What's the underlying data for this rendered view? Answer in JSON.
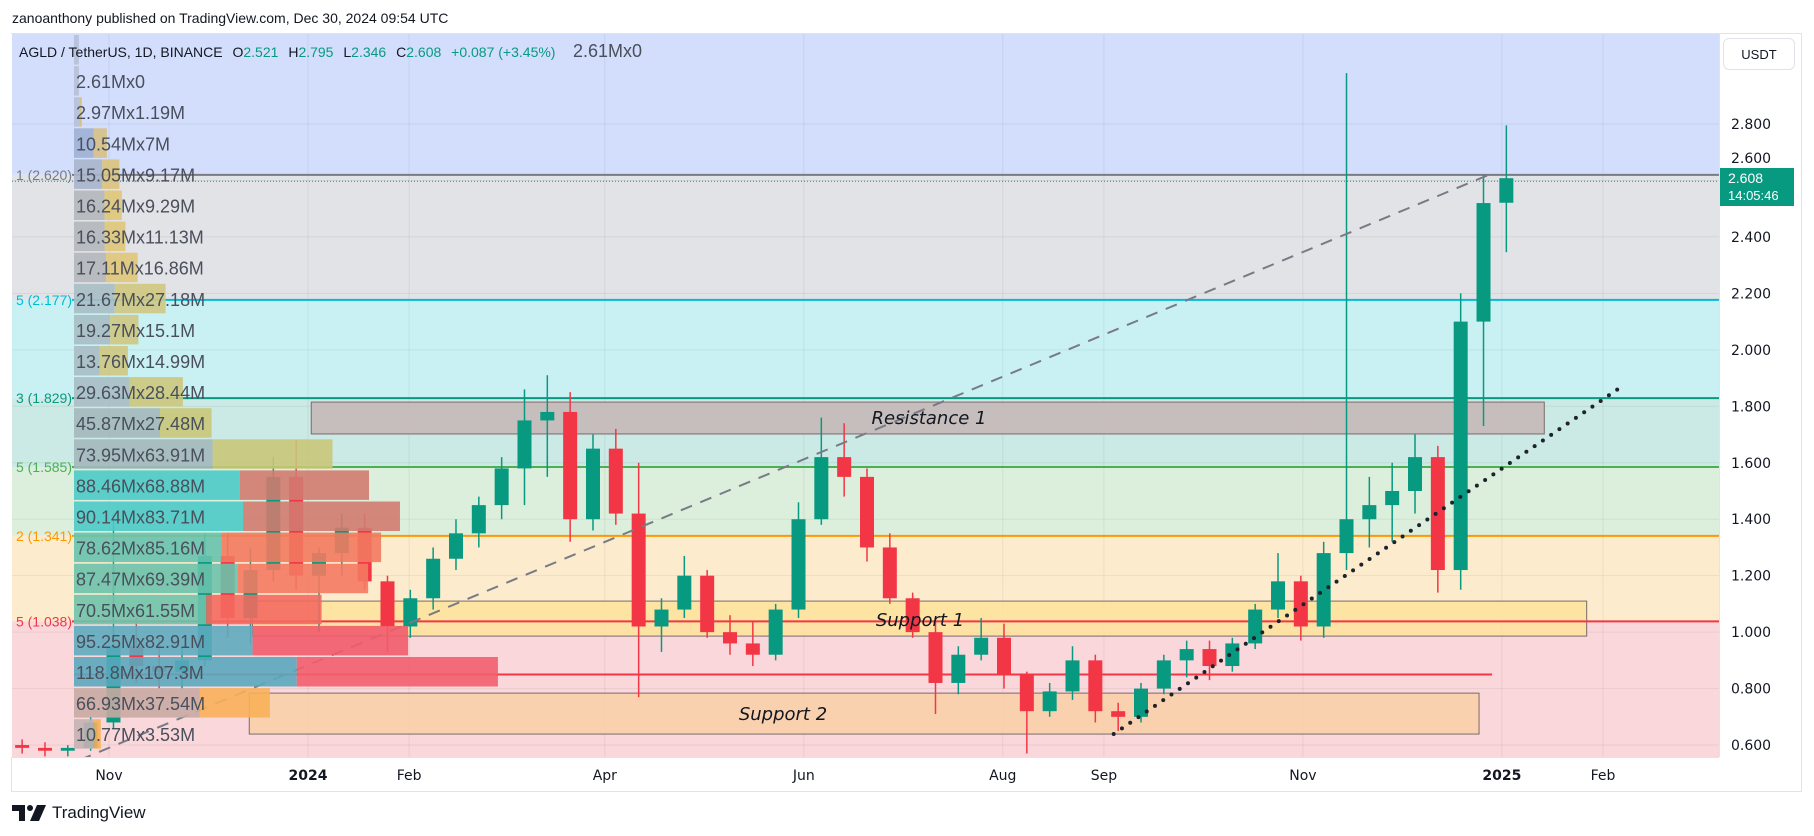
{
  "header": {
    "publisher_line": "zanoanthony published on TradingView.com, Dec 30, 2024 09:54 UTC"
  },
  "legend": {
    "symbol": "AGLD / TetherUS, 1D, BINANCE",
    "open_label": "O",
    "open": "2.521",
    "high_label": "H",
    "high": "2.795",
    "low_label": "L",
    "low": "2.346",
    "close_label": "C",
    "close": "2.608",
    "change": "+0.087 (+3.45%)"
  },
  "price_axis": {
    "currency_button": "USDT",
    "ticks": [
      "2.800",
      "2.600",
      "2.400",
      "2.200",
      "2.000",
      "1.800",
      "1.600",
      "1.400",
      "1.200",
      "1.000",
      "0.800",
      "0.600"
    ],
    "current_price": "2.608",
    "countdown": "14:05:46"
  },
  "time_axis": {
    "ticks": [
      {
        "label": "Nov",
        "date": "2023-11-01",
        "bold": false
      },
      {
        "label": "2024",
        "date": "2024-01-01",
        "bold": true
      },
      {
        "label": "Feb",
        "date": "2024-02-01",
        "bold": false
      },
      {
        "label": "Apr",
        "date": "2024-04-01",
        "bold": false
      },
      {
        "label": "Jun",
        "date": "2024-06-01",
        "bold": false
      },
      {
        "label": "Aug",
        "date": "2024-08-01",
        "bold": false
      },
      {
        "label": "Sep",
        "date": "2024-09-01",
        "bold": false
      },
      {
        "label": "Nov",
        "date": "2024-11-01",
        "bold": false
      },
      {
        "label": "2025",
        "date": "2025-01-01",
        "bold": true
      },
      {
        "label": "Feb",
        "date": "2025-02-01",
        "bold": false
      }
    ]
  },
  "colors": {
    "up": "#089981",
    "down": "#f23645",
    "accent": "#089981"
  },
  "chart_data": {
    "type": "candlestick",
    "title": "AGLD / TetherUS, 1D, BINANCE",
    "ylim": [
      0.58,
      2.98
    ],
    "grid": true,
    "candles_weekly_approx": [
      [
        "2023-10-02",
        0.6,
        0.62,
        0.57,
        0.59
      ],
      [
        "2023-10-09",
        0.59,
        0.61,
        0.56,
        0.58
      ],
      [
        "2023-10-16",
        0.58,
        0.6,
        0.56,
        0.59
      ],
      [
        "2023-10-23",
        0.59,
        0.7,
        0.58,
        0.68
      ],
      [
        "2023-10-30",
        0.68,
        1.42,
        0.66,
        0.95
      ],
      [
        "2023-11-06",
        0.95,
        1.05,
        0.82,
        0.88
      ],
      [
        "2023-11-13",
        0.88,
        0.98,
        0.8,
        0.86
      ],
      [
        "2023-11-20",
        0.86,
        0.95,
        0.8,
        0.9
      ],
      [
        "2023-11-27",
        0.9,
        1.35,
        0.88,
        1.27
      ],
      [
        "2023-12-04",
        1.27,
        1.35,
        0.98,
        1.05
      ],
      [
        "2023-12-11",
        1.05,
        1.3,
        0.96,
        1.22
      ],
      [
        "2023-12-18",
        1.22,
        1.62,
        1.18,
        1.55
      ],
      [
        "2023-12-25",
        1.55,
        1.68,
        1.15,
        1.2
      ],
      [
        "2024-01-01",
        1.2,
        1.3,
        1.0,
        1.28
      ],
      [
        "2024-01-08",
        1.28,
        1.42,
        1.2,
        1.37
      ],
      [
        "2024-01-15",
        1.37,
        1.42,
        1.15,
        1.18
      ],
      [
        "2024-01-22",
        1.18,
        1.2,
        0.93,
        1.02
      ],
      [
        "2024-01-29",
        1.02,
        1.15,
        0.98,
        1.12
      ],
      [
        "2024-02-05",
        1.12,
        1.3,
        1.08,
        1.26
      ],
      [
        "2024-02-12",
        1.26,
        1.4,
        1.22,
        1.35
      ],
      [
        "2024-02-19",
        1.35,
        1.48,
        1.3,
        1.45
      ],
      [
        "2024-02-26",
        1.45,
        1.62,
        1.4,
        1.58
      ],
      [
        "2024-03-04",
        1.58,
        1.86,
        1.45,
        1.75
      ],
      [
        "2024-03-11",
        1.75,
        1.91,
        1.55,
        1.78
      ],
      [
        "2024-03-18",
        1.78,
        1.85,
        1.32,
        1.4
      ],
      [
        "2024-03-25",
        1.4,
        1.7,
        1.36,
        1.65
      ],
      [
        "2024-04-01",
        1.65,
        1.72,
        1.38,
        1.42
      ],
      [
        "2024-04-08",
        1.42,
        1.6,
        0.77,
        1.02
      ],
      [
        "2024-04-15",
        1.02,
        1.12,
        0.93,
        1.08
      ],
      [
        "2024-04-22",
        1.08,
        1.27,
        1.05,
        1.2
      ],
      [
        "2024-04-29",
        1.2,
        1.22,
        0.98,
        1.0
      ],
      [
        "2024-05-06",
        1.0,
        1.06,
        0.92,
        0.96
      ],
      [
        "2024-05-13",
        0.96,
        1.04,
        0.88,
        0.92
      ],
      [
        "2024-05-20",
        0.92,
        1.1,
        0.9,
        1.08
      ],
      [
        "2024-05-27",
        1.08,
        1.46,
        1.05,
        1.4
      ],
      [
        "2024-06-03",
        1.4,
        1.76,
        1.38,
        1.62
      ],
      [
        "2024-06-10",
        1.62,
        1.74,
        1.48,
        1.55
      ],
      [
        "2024-06-17",
        1.55,
        1.58,
        1.25,
        1.3
      ],
      [
        "2024-06-24",
        1.3,
        1.35,
        1.1,
        1.12
      ],
      [
        "2024-07-01",
        1.12,
        1.14,
        0.98,
        1.0
      ],
      [
        "2024-07-08",
        1.0,
        1.05,
        0.71,
        0.82
      ],
      [
        "2024-07-15",
        0.82,
        0.95,
        0.78,
        0.92
      ],
      [
        "2024-07-22",
        0.92,
        1.05,
        0.9,
        0.98
      ],
      [
        "2024-07-29",
        0.98,
        1.03,
        0.8,
        0.85
      ],
      [
        "2024-08-05",
        0.85,
        0.86,
        0.57,
        0.72
      ],
      [
        "2024-08-12",
        0.72,
        0.82,
        0.7,
        0.79
      ],
      [
        "2024-08-19",
        0.79,
        0.95,
        0.76,
        0.9
      ],
      [
        "2024-08-26",
        0.9,
        0.92,
        0.68,
        0.72
      ],
      [
        "2024-09-02",
        0.72,
        0.75,
        0.65,
        0.7
      ],
      [
        "2024-09-09",
        0.7,
        0.82,
        0.68,
        0.8
      ],
      [
        "2024-09-16",
        0.8,
        0.92,
        0.78,
        0.9
      ],
      [
        "2024-09-23",
        0.9,
        0.97,
        0.84,
        0.94
      ],
      [
        "2024-09-30",
        0.94,
        0.97,
        0.83,
        0.88
      ],
      [
        "2024-10-07",
        0.88,
        0.98,
        0.86,
        0.96
      ],
      [
        "2024-10-14",
        0.96,
        1.1,
        0.94,
        1.08
      ],
      [
        "2024-10-21",
        1.08,
        1.28,
        1.05,
        1.18
      ],
      [
        "2024-10-28",
        1.18,
        1.2,
        0.97,
        1.02
      ],
      [
        "2024-11-04",
        1.02,
        1.32,
        0.98,
        1.28
      ],
      [
        "2024-11-11",
        1.28,
        2.98,
        1.22,
        1.4
      ],
      [
        "2024-11-18",
        1.4,
        1.55,
        1.3,
        1.45
      ],
      [
        "2024-11-25",
        1.45,
        1.6,
        1.32,
        1.5
      ],
      [
        "2024-12-02",
        1.5,
        1.7,
        1.42,
        1.62
      ],
      [
        "2024-12-09",
        1.62,
        1.66,
        1.14,
        1.22
      ],
      [
        "2024-12-16",
        1.22,
        2.2,
        1.15,
        2.1
      ],
      [
        "2024-12-23",
        2.1,
        2.62,
        1.73,
        2.52
      ],
      [
        "2024-12-30",
        2.521,
        2.795,
        2.346,
        2.608
      ]
    ],
    "fib_levels": [
      {
        "label": "1 (2.620)",
        "price": 2.62,
        "color": "#787b86",
        "fill_above": "#d3defc"
      },
      {
        "label": "5 (2.177)",
        "price": 2.177,
        "color": "#00bcd4",
        "fill_above": "#e2e3e7"
      },
      {
        "label": "3 (1.829)",
        "price": 1.829,
        "color": "#089981",
        "fill_above": "#c9f1f4"
      },
      {
        "label": "5 (1.585)",
        "price": 1.585,
        "color": "#4caf50",
        "fill_above": "#cbeae5"
      },
      {
        "label": "2 (1.341)",
        "price": 1.341,
        "color": "#ff9800",
        "fill_above": "#dbefdc"
      },
      {
        "label": "5 (1.038)",
        "price": 1.038,
        "color": "#f23645",
        "fill_above": "#fdebcd",
        "fill_below": "#fad7db"
      }
    ],
    "zones": [
      {
        "label": "Resistance 1",
        "top": 1.815,
        "bottom": 1.702,
        "start": "2024-01-02",
        "end": "2025-01-14",
        "fill": "#c6b6b6"
      },
      {
        "label": "Support 1",
        "top": 1.11,
        "bottom": 0.986,
        "start": "2023-12-15",
        "end": "2025-01-27",
        "fill": "#fee39a"
      },
      {
        "label": "Support 2",
        "top": 0.784,
        "bottom": 0.639,
        "start": "2023-12-14",
        "end": "2024-12-25",
        "fill": "#f9d0a6"
      }
    ],
    "trendlines": [
      {
        "style": "dashed",
        "from": [
          "2023-10-23",
          0.547
        ],
        "to": [
          "2024-12-28",
          2.62
        ],
        "color": "#787b86"
      },
      {
        "style": "dotted",
        "from": [
          "2024-09-04",
          0.639
        ],
        "to": [
          "2025-02-07",
          1.872
        ],
        "color": "#1e222d"
      }
    ],
    "poc_line": {
      "price": 0.85,
      "end": "2024-12-29",
      "color": "#f23645"
    },
    "volume_profile": [
      {
        "label": "2.61Mx0",
        "up": 2.61,
        "down": 0,
        "up_color": "#b7c0d8",
        "down_color": "#d8c07a"
      },
      {
        "label": "2.61Mx0",
        "up": 2.61,
        "down": 0,
        "up_color": "#b7c0d8",
        "down_color": "#d8c07a"
      },
      {
        "label": "2.97Mx1.19M",
        "up": 2.97,
        "down": 1.19,
        "up_color": "#b7c0d8",
        "down_color": "#d8c07a"
      },
      {
        "label": "10.54Mx7M",
        "up": 10.54,
        "down": 7,
        "up_color": "#9fb0d6",
        "down_color": "#d6c083"
      },
      {
        "label": "15.05Mx9.17M",
        "up": 15.05,
        "down": 9.17,
        "up_color": "#a8b4cc",
        "down_color": "#dcc27a"
      },
      {
        "label": "16.24Mx9.29M",
        "up": 16.24,
        "down": 9.29,
        "up_color": "#b4b6ba",
        "down_color": "#dfc578"
      },
      {
        "label": "16.33Mx11.13M",
        "up": 16.33,
        "down": 11.13,
        "up_color": "#b4b6ba",
        "down_color": "#dfc578"
      },
      {
        "label": "17.11Mx16.86M",
        "up": 17.11,
        "down": 16.86,
        "up_color": "#b4b6ba",
        "down_color": "#dfc578"
      },
      {
        "label": "21.67Mx27.18M",
        "up": 21.67,
        "down": 27.18,
        "up_color": "#a9bcc4",
        "down_color": "#cfc681"
      },
      {
        "label": "19.27Mx15.1M",
        "up": 19.27,
        "down": 15.1,
        "up_color": "#a9bcc4",
        "down_color": "#cfc681"
      },
      {
        "label": "13.76Mx14.99M",
        "up": 13.76,
        "down": 14.99,
        "up_color": "#a9bcc4",
        "down_color": "#cfc681"
      },
      {
        "label": "29.63Mx28.44M",
        "up": 29.63,
        "down": 28.44,
        "up_color": "#a9bcc4",
        "down_color": "#cdc67c"
      },
      {
        "label": "45.87Mx27.48M",
        "up": 45.87,
        "down": 27.48,
        "up_color": "#a3b8bb",
        "down_color": "#c9c678"
      },
      {
        "label": "73.95Mx63.91M",
        "up": 73.95,
        "down": 63.91,
        "up_color": "#a3b8bb",
        "down_color": "#c9c678"
      },
      {
        "label": "88.46Mx68.88M",
        "up": 88.46,
        "down": 68.88,
        "up_color": "#4ccac8",
        "down_color": "#d27b70"
      },
      {
        "label": "90.14Mx83.71M",
        "up": 90.14,
        "down": 83.71,
        "up_color": "#4ccac8",
        "down_color": "#d27b70"
      },
      {
        "label": "78.62Mx85.16M",
        "up": 78.62,
        "down": 85.16,
        "up_color": "#67c3ae",
        "down_color": "#f27a5f"
      },
      {
        "label": "87.47Mx69.39M",
        "up": 87.47,
        "down": 69.39,
        "up_color": "#6bc2ab",
        "down_color": "#f47a62"
      },
      {
        "label": "70.5Mx61.55M",
        "up": 70.5,
        "down": 61.55,
        "up_color": "#6fc3ac",
        "down_color": "#f46a60"
      },
      {
        "label": "95.25Mx82.91M",
        "up": 95.25,
        "down": 82.91,
        "up_color": "#5eabbe",
        "down_color": "#f25c6c"
      },
      {
        "label": "118.8Mx107.3M",
        "up": 118.8,
        "down": 107.3,
        "up_color": "#5aa9bd",
        "down_color": "#f25f6e"
      },
      {
        "label": "66.93Mx37.54M",
        "up": 66.93,
        "down": 37.54,
        "up_color": "#c9aaa2",
        "down_color": "#f8b05a"
      },
      {
        "label": "10.77Mx3.53M",
        "up": 10.77,
        "down": 3.53,
        "up_color": "#c4b2b2",
        "down_color": "#f8b05a"
      }
    ]
  },
  "footer": {
    "brand": "TradingView"
  }
}
